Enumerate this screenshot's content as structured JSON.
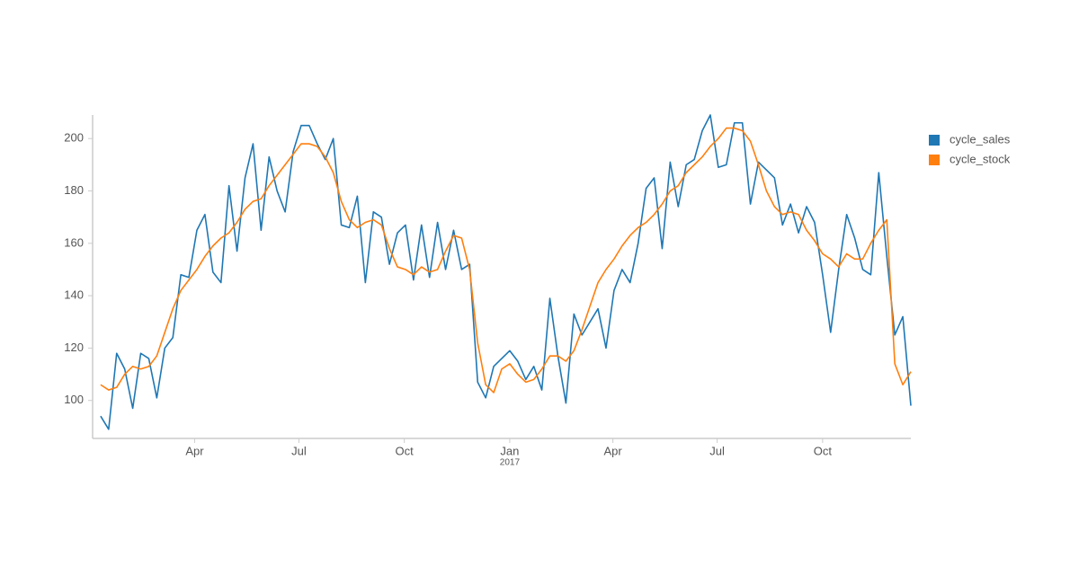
{
  "chart_data": {
    "type": "line",
    "x": [
      "2016-01-10",
      "2016-01-17",
      "2016-01-24",
      "2016-01-31",
      "2016-02-07",
      "2016-02-14",
      "2016-02-21",
      "2016-02-28",
      "2016-03-06",
      "2016-03-13",
      "2016-03-20",
      "2016-03-27",
      "2016-04-03",
      "2016-04-10",
      "2016-04-17",
      "2016-04-24",
      "2016-05-01",
      "2016-05-08",
      "2016-05-15",
      "2016-05-22",
      "2016-05-29",
      "2016-06-05",
      "2016-06-12",
      "2016-06-19",
      "2016-06-26",
      "2016-07-03",
      "2016-07-10",
      "2016-07-17",
      "2016-07-24",
      "2016-07-31",
      "2016-08-07",
      "2016-08-14",
      "2016-08-21",
      "2016-08-28",
      "2016-09-04",
      "2016-09-11",
      "2016-09-18",
      "2016-09-25",
      "2016-10-02",
      "2016-10-09",
      "2016-10-16",
      "2016-10-23",
      "2016-10-30",
      "2016-11-06",
      "2016-11-13",
      "2016-11-20",
      "2016-11-27",
      "2016-12-04",
      "2016-12-11",
      "2016-12-18",
      "2016-12-25",
      "2017-01-01",
      "2017-01-08",
      "2017-01-15",
      "2017-01-22",
      "2017-01-29",
      "2017-02-05",
      "2017-02-12",
      "2017-02-19",
      "2017-02-26",
      "2017-03-05",
      "2017-03-12",
      "2017-03-19",
      "2017-03-26",
      "2017-04-02",
      "2017-04-09",
      "2017-04-16",
      "2017-04-23",
      "2017-04-30",
      "2017-05-07",
      "2017-05-14",
      "2017-05-21",
      "2017-05-28",
      "2017-06-04",
      "2017-06-11",
      "2017-06-18",
      "2017-06-25",
      "2017-07-02",
      "2017-07-09",
      "2017-07-16",
      "2017-07-23",
      "2017-07-30",
      "2017-08-06",
      "2017-08-13",
      "2017-08-20",
      "2017-08-27",
      "2017-09-03",
      "2017-09-10",
      "2017-09-17",
      "2017-09-24",
      "2017-10-01",
      "2017-10-08",
      "2017-10-15",
      "2017-10-22",
      "2017-10-29",
      "2017-11-05",
      "2017-11-12",
      "2017-11-19",
      "2017-11-26",
      "2017-12-03",
      "2017-12-10",
      "2017-12-17"
    ],
    "series": [
      {
        "name": "cycle_sales",
        "color": "#1f77b4",
        "values": [
          94,
          89,
          118,
          112,
          97,
          118,
          116,
          101,
          120,
          124,
          148,
          147,
          165,
          171,
          149,
          145,
          182,
          157,
          185,
          198,
          165,
          193,
          180,
          172,
          195,
          205,
          205,
          198,
          192,
          200,
          167,
          166,
          178,
          145,
          172,
          170,
          152,
          164,
          167,
          146,
          167,
          147,
          168,
          150,
          165,
          150,
          152,
          107,
          101,
          113,
          116,
          119,
          115,
          108,
          113,
          104,
          139,
          117,
          99,
          133,
          125,
          130,
          135,
          120,
          142,
          150,
          145,
          160,
          181,
          185,
          158,
          191,
          174,
          190,
          192,
          203,
          209,
          189,
          190,
          206,
          206,
          175,
          191,
          188,
          185,
          167,
          175,
          164,
          174,
          168,
          148,
          126,
          150,
          171,
          162,
          150,
          148,
          187,
          155,
          125,
          132,
          98
        ]
      },
      {
        "name": "cycle_stock",
        "color": "#ff7f0e",
        "values": [
          106,
          104,
          105,
          110,
          113,
          112,
          113,
          117,
          126,
          135,
          142,
          146,
          150,
          155,
          159,
          162,
          164,
          168,
          173,
          176,
          177,
          182,
          186,
          190,
          194,
          198,
          198,
          197,
          193,
          187,
          176,
          169,
          166,
          168,
          169,
          167,
          158,
          151,
          150,
          148,
          151,
          149,
          150,
          157,
          163,
          162,
          150,
          122,
          106,
          103,
          112,
          114,
          110,
          107,
          108,
          112,
          117,
          117,
          115,
          119,
          127,
          136,
          145,
          150,
          154,
          159,
          163,
          166,
          168,
          171,
          175,
          180,
          182,
          187,
          190,
          193,
          197,
          200,
          204,
          204,
          203,
          199,
          190,
          180,
          174,
          171,
          172,
          171,
          165,
          161,
          156,
          154,
          151,
          156,
          154,
          154,
          160,
          165,
          169,
          114,
          106,
          111
        ]
      }
    ],
    "xlim": [
      "2016-01-03",
      "2017-12-17"
    ],
    "xticks": [
      {
        "value": "2016-04-01",
        "label": "Apr"
      },
      {
        "value": "2016-07-01",
        "label": "Jul"
      },
      {
        "value": "2016-10-01",
        "label": "Oct"
      },
      {
        "value": "2017-01-01",
        "label": "Jan",
        "year": "2017"
      },
      {
        "value": "2017-04-01",
        "label": "Apr"
      },
      {
        "value": "2017-07-01",
        "label": "Jul"
      },
      {
        "value": "2017-10-01",
        "label": "Oct"
      }
    ],
    "ylim": [
      85.5,
      209
    ],
    "yticks": [
      100,
      120,
      140,
      160,
      180,
      200
    ],
    "grid": false,
    "legend": "right"
  }
}
